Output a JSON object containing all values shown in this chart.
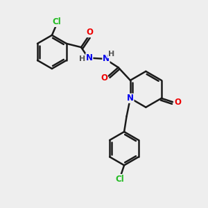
{
  "background_color": "#eeeeee",
  "bond_color": "#1a1a1a",
  "bond_width": 1.8,
  "atom_colors": {
    "C": "#1a1a1a",
    "N": "#0000ee",
    "O": "#ee0000",
    "Cl": "#22bb22",
    "H": "#555555"
  },
  "font_size": 8.5,
  "fig_size": [
    3.0,
    3.0
  ],
  "dpi": 100,
  "dbo2": 0.1
}
